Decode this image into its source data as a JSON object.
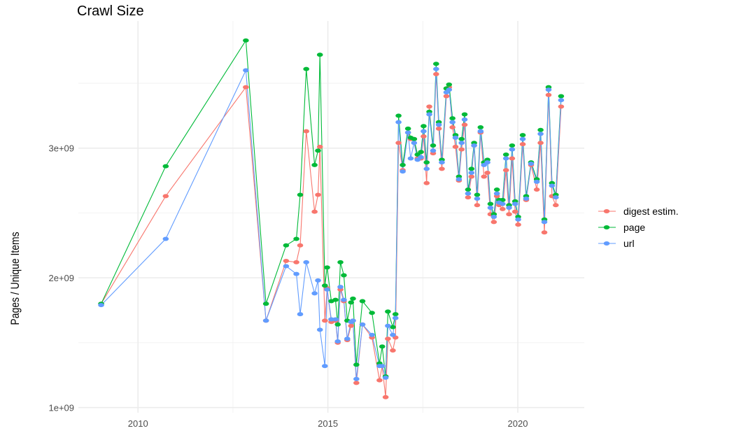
{
  "chart_data": {
    "type": "line",
    "title": "Crawl Size",
    "xlabel": "",
    "ylabel": "Pages / Unique Items",
    "xlim": [
      2008.43,
      2021.75
    ],
    "ylim": [
      960000000.0,
      3980000000.0
    ],
    "x_ticks": [
      2010,
      2015,
      2020
    ],
    "x_tick_labels": [
      "2010",
      "2015",
      "2020"
    ],
    "y_ticks": [
      1000000000.0,
      2000000000.0,
      3000000000.0
    ],
    "y_tick_labels": [
      "1e+09",
      "2e+09",
      "3e+09"
    ],
    "grid": true,
    "legend_position": "right",
    "x": [
      2009.03,
      2010.73,
      2012.84,
      2013.37,
      2013.9,
      2014.17,
      2014.27,
      2014.43,
      2014.65,
      2014.74,
      2014.79,
      2014.92,
      2014.98,
      2015.09,
      2015.2,
      2015.26,
      2015.33,
      2015.42,
      2015.51,
      2015.61,
      2015.66,
      2015.75,
      2015.91,
      2016.16,
      2016.36,
      2016.43,
      2016.52,
      2016.58,
      2016.71,
      2016.78,
      2016.86,
      2016.97,
      2017.11,
      2017.18,
      2017.27,
      2017.36,
      2017.45,
      2017.52,
      2017.6,
      2017.67,
      2017.77,
      2017.85,
      2017.92,
      2018.0,
      2018.12,
      2018.19,
      2018.28,
      2018.36,
      2018.45,
      2018.52,
      2018.6,
      2018.69,
      2018.78,
      2018.85,
      2018.93,
      2019.02,
      2019.11,
      2019.2,
      2019.28,
      2019.37,
      2019.45,
      2019.51,
      2019.6,
      2019.69,
      2019.77,
      2019.85,
      2019.93,
      2020.01,
      2020.13,
      2020.22,
      2020.35,
      2020.5,
      2020.6,
      2020.7,
      2020.81,
      2020.9,
      2021.0,
      2021.14
    ],
    "series": [
      {
        "name": "digest estim.",
        "color": "#F8766D",
        "values": [
          1800000000.0,
          2630000000.0,
          3470000000.0,
          1670000000.0,
          2130000000.0,
          2120000000.0,
          2250000000.0,
          3130000000.0,
          2510000000.0,
          2640000000.0,
          3010000000.0,
          1670000000.0,
          1920000000.0,
          1660000000.0,
          1670000000.0,
          1500000000.0,
          1910000000.0,
          1820000000.0,
          1520000000.0,
          1630000000.0,
          1670000000.0,
          1190000000.0,
          1640000000.0,
          1540000000.0,
          1210000000.0,
          1320000000.0,
          1080000000.0,
          1530000000.0,
          1440000000.0,
          1540000000.0,
          3040000000.0,
          2830000000.0,
          3120000000.0,
          3070000000.0,
          3070000000.0,
          2920000000.0,
          2920000000.0,
          3090000000.0,
          2730000000.0,
          3320000000.0,
          2960000000.0,
          3570000000.0,
          3150000000.0,
          2840000000.0,
          3400000000.0,
          3470000000.0,
          3160000000.0,
          3010000000.0,
          2750000000.0,
          2990000000.0,
          3180000000.0,
          2620000000.0,
          2780000000.0,
          3020000000.0,
          2560000000.0,
          3120000000.0,
          2780000000.0,
          2810000000.0,
          2490000000.0,
          2430000000.0,
          2630000000.0,
          2560000000.0,
          2530000000.0,
          2830000000.0,
          2490000000.0,
          2920000000.0,
          2510000000.0,
          2410000000.0,
          3030000000.0,
          2600000000.0,
          2870000000.0,
          2680000000.0,
          3040000000.0,
          2350000000.0,
          3410000000.0,
          2630000000.0,
          2560000000.0,
          3320000000.0
        ]
      },
      {
        "name": "page",
        "color": "#00BA38",
        "values": [
          1800000000.0,
          2860000000.0,
          3830000000.0,
          1800000000.0,
          2250000000.0,
          2300000000.0,
          2640000000.0,
          3610000000.0,
          2870000000.0,
          2980000000.0,
          3720000000.0,
          1940000000.0,
          2080000000.0,
          1820000000.0,
          1830000000.0,
          1640000000.0,
          2120000000.0,
          2020000000.0,
          1670000000.0,
          1810000000.0,
          1840000000.0,
          1330000000.0,
          1820000000.0,
          1730000000.0,
          1340000000.0,
          1470000000.0,
          1240000000.0,
          1740000000.0,
          1620000000.0,
          1720000000.0,
          3250000000.0,
          2870000000.0,
          3150000000.0,
          3080000000.0,
          3070000000.0,
          2950000000.0,
          2970000000.0,
          3170000000.0,
          2890000000.0,
          3280000000.0,
          3020000000.0,
          3650000000.0,
          3200000000.0,
          2910000000.0,
          3460000000.0,
          3490000000.0,
          3230000000.0,
          3100000000.0,
          2780000000.0,
          3070000000.0,
          3260000000.0,
          2680000000.0,
          2840000000.0,
          3040000000.0,
          2640000000.0,
          3160000000.0,
          2890000000.0,
          2910000000.0,
          2570000000.0,
          2490000000.0,
          2680000000.0,
          2600000000.0,
          2600000000.0,
          2950000000.0,
          2560000000.0,
          3020000000.0,
          2590000000.0,
          2470000000.0,
          3100000000.0,
          2630000000.0,
          2890000000.0,
          2760000000.0,
          3140000000.0,
          2450000000.0,
          3470000000.0,
          2730000000.0,
          2640000000.0,
          3400000000.0
        ]
      },
      {
        "name": "url",
        "color": "#619CFF",
        "values": [
          1790000000.0,
          2300000000.0,
          3600000000.0,
          1670000000.0,
          2090000000.0,
          2030000000.0,
          1720000000.0,
          2120000000.0,
          1880000000.0,
          1980000000.0,
          1600000000.0,
          1320000000.0,
          1910000000.0,
          1680000000.0,
          1680000000.0,
          1510000000.0,
          1930000000.0,
          1830000000.0,
          1530000000.0,
          1660000000.0,
          1670000000.0,
          1220000000.0,
          1640000000.0,
          1560000000.0,
          1320000000.0,
          1320000000.0,
          1230000000.0,
          1630000000.0,
          1560000000.0,
          1690000000.0,
          3200000000.0,
          2820000000.0,
          3120000000.0,
          2920000000.0,
          3040000000.0,
          2910000000.0,
          2930000000.0,
          3130000000.0,
          2840000000.0,
          3260000000.0,
          2980000000.0,
          3610000000.0,
          3180000000.0,
          2890000000.0,
          3430000000.0,
          3450000000.0,
          3200000000.0,
          3080000000.0,
          2760000000.0,
          3040000000.0,
          3220000000.0,
          2650000000.0,
          2810000000.0,
          3020000000.0,
          2610000000.0,
          3130000000.0,
          2870000000.0,
          2890000000.0,
          2540000000.0,
          2470000000.0,
          2650000000.0,
          2580000000.0,
          2570000000.0,
          2920000000.0,
          2540000000.0,
          2990000000.0,
          2570000000.0,
          2450000000.0,
          3070000000.0,
          2610000000.0,
          2880000000.0,
          2740000000.0,
          3110000000.0,
          2430000000.0,
          3450000000.0,
          2710000000.0,
          2620000000.0,
          3370000000.0
        ]
      }
    ]
  }
}
